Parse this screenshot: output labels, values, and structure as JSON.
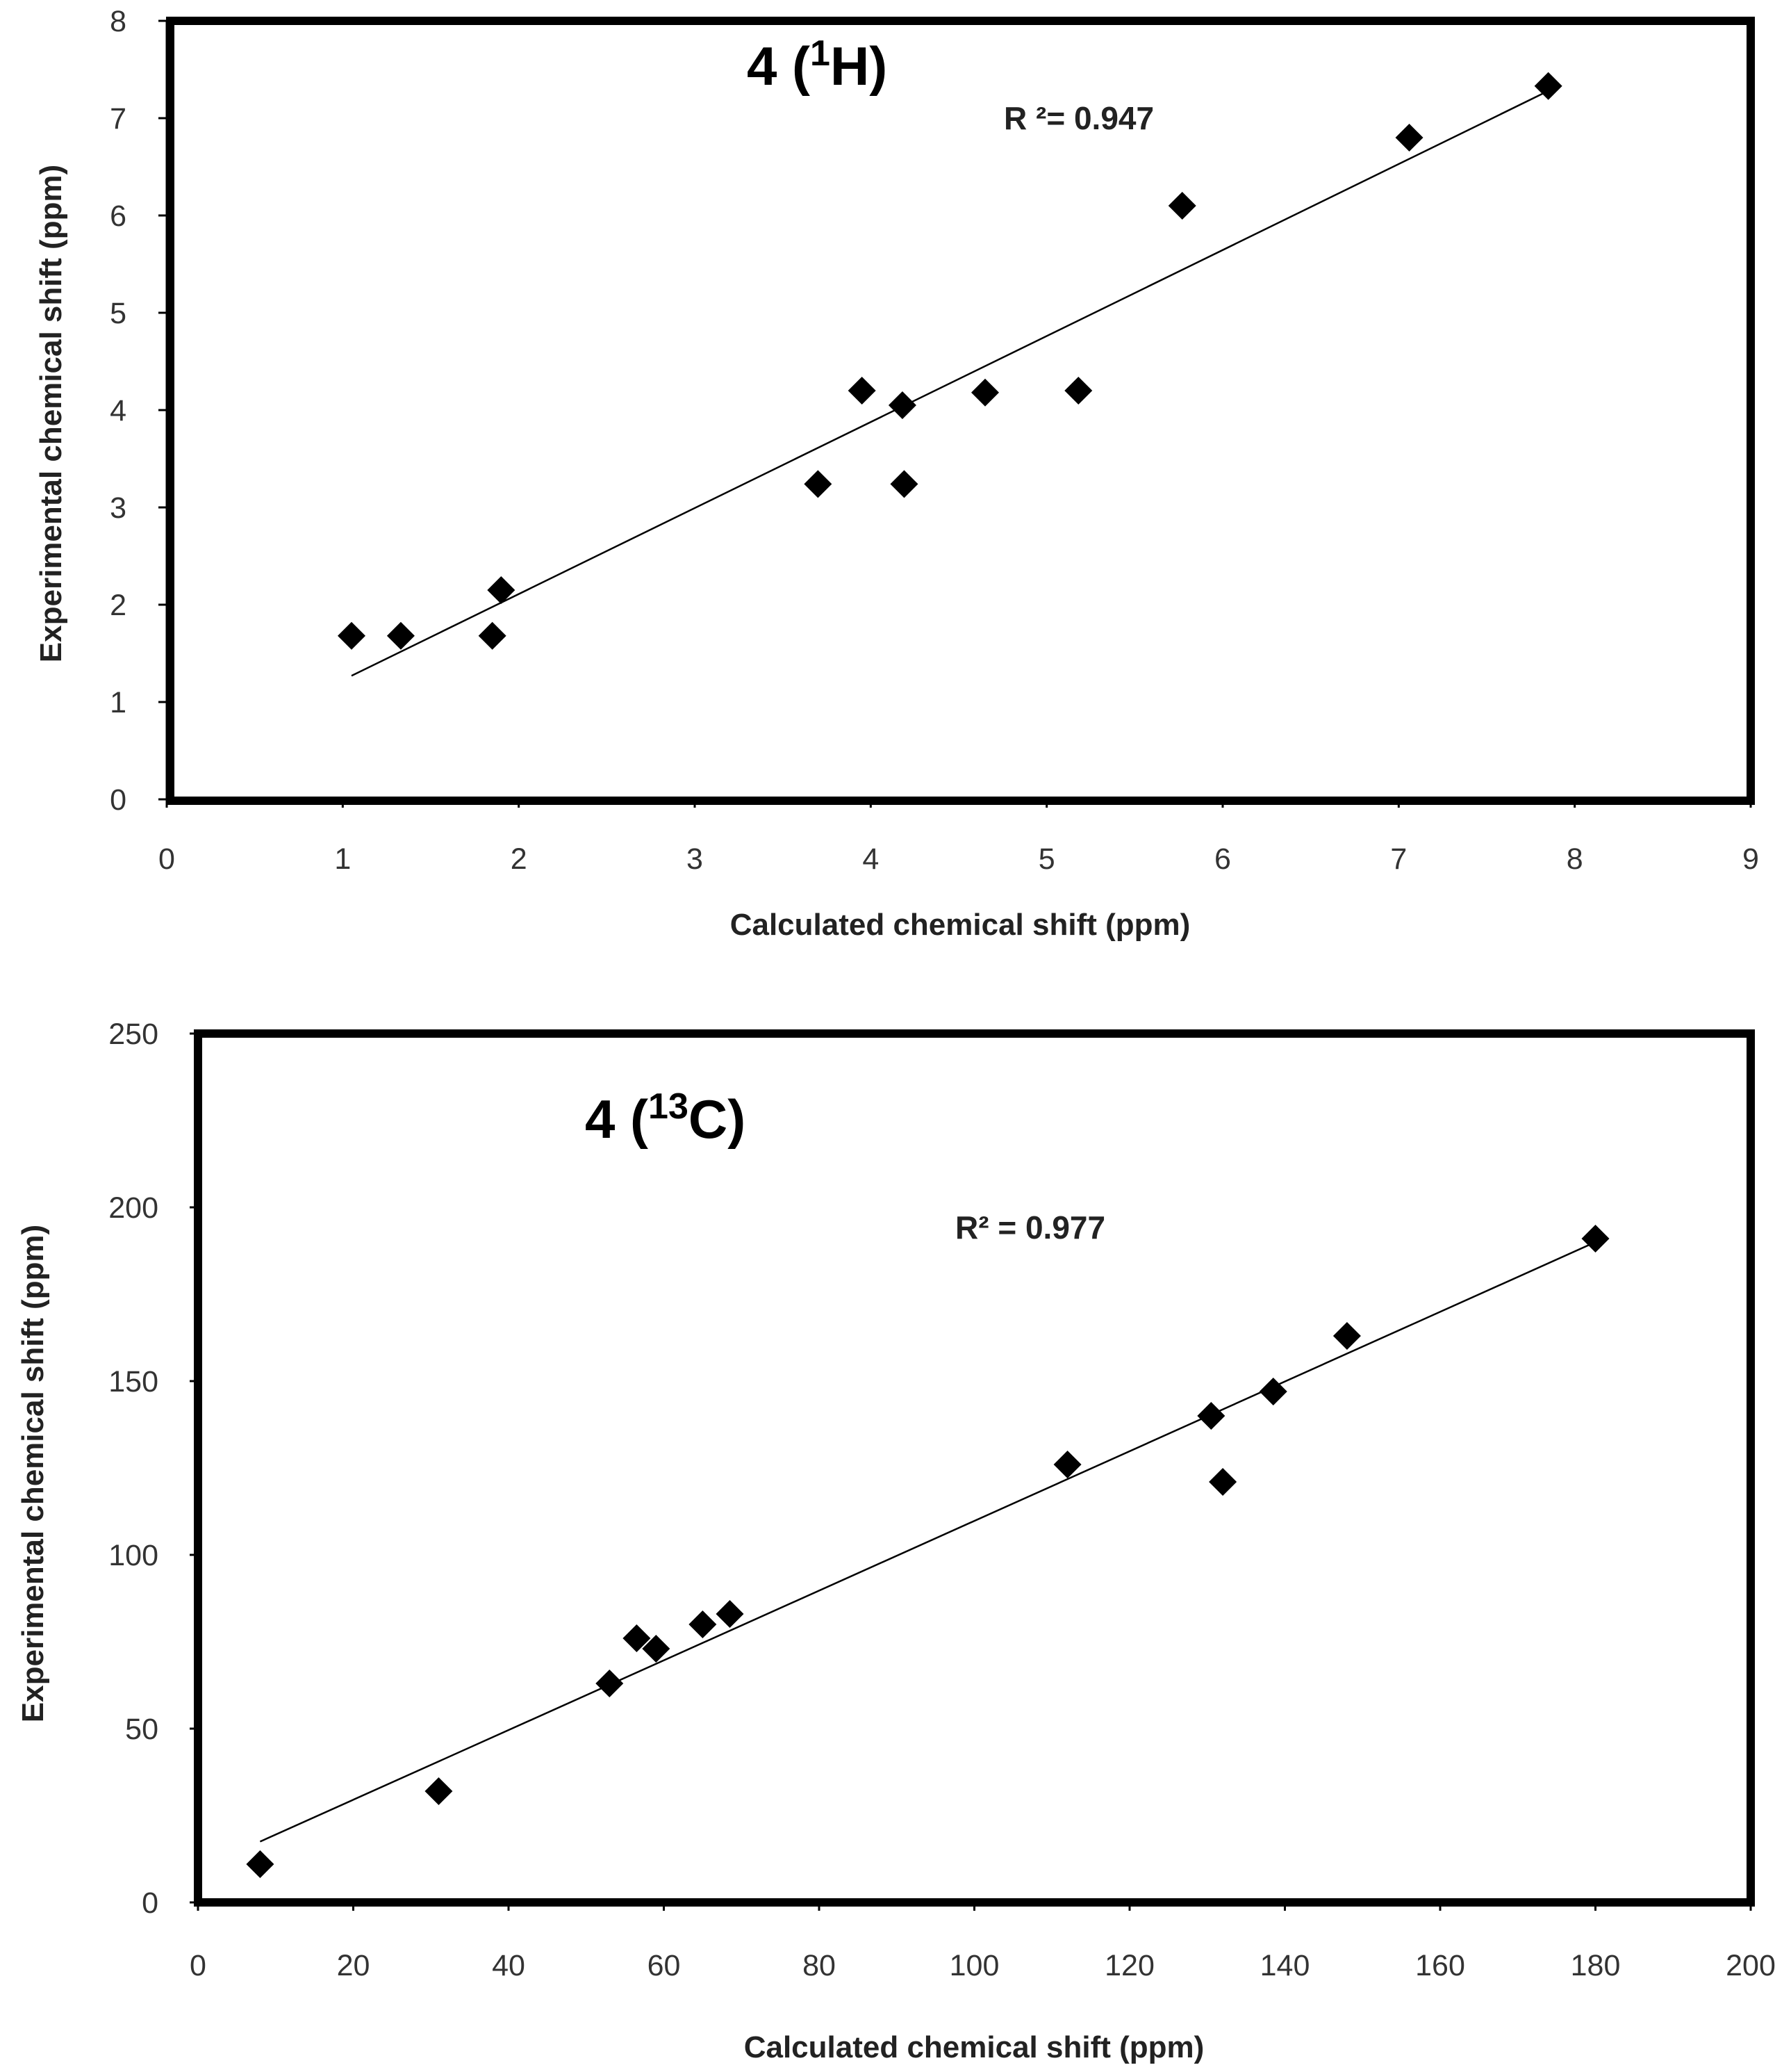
{
  "colors": {
    "ink": "#000000",
    "frame": "#000000",
    "marker": "#000000",
    "trend": "#000000",
    "tick_text": "#333333"
  },
  "chart_data": [
    {
      "type": "scatter",
      "title_main": "4 (",
      "title_sup": "1",
      "title_rest": "H)",
      "r2_label": "R ²= 0.947",
      "xlabel": "Calculated chemical shift (ppm)",
      "ylabel": "Experimental chemical shift (ppm)",
      "xlim": [
        0,
        9
      ],
      "ylim": [
        0,
        8
      ],
      "xticks": [
        "0",
        "1",
        "2",
        "3",
        "4",
        "5",
        "6",
        "7",
        "8",
        "9"
      ],
      "yticks": [
        "0",
        "1",
        "2",
        "3",
        "4",
        "5",
        "6",
        "7",
        "8"
      ],
      "points": [
        {
          "x": 1.05,
          "y": 1.68
        },
        {
          "x": 1.33,
          "y": 1.68
        },
        {
          "x": 1.85,
          "y": 1.68
        },
        {
          "x": 1.9,
          "y": 2.15
        },
        {
          "x": 3.7,
          "y": 3.24
        },
        {
          "x": 3.95,
          "y": 4.2
        },
        {
          "x": 4.18,
          "y": 4.05
        },
        {
          "x": 4.19,
          "y": 3.24
        },
        {
          "x": 4.65,
          "y": 4.18
        },
        {
          "x": 5.18,
          "y": 4.2
        },
        {
          "x": 5.77,
          "y": 6.1
        },
        {
          "x": 7.06,
          "y": 6.8
        },
        {
          "x": 7.85,
          "y": 7.33
        }
      ],
      "trendline": {
        "x": [
          1.05,
          7.85
        ],
        "y": [
          1.27,
          7.28
        ]
      }
    },
    {
      "type": "scatter",
      "title_main": "4 (",
      "title_sup": "13",
      "title_rest": "C)",
      "r2_label": "R² =   0.977",
      "xlabel": "Calculated chemical shift (ppm)",
      "ylabel": "Experimental chemical shift (ppm)",
      "xlim": [
        0,
        200
      ],
      "ylim": [
        0,
        250
      ],
      "xticks": [
        "0",
        "20",
        "40",
        "60",
        "80",
        "100",
        "120",
        "140",
        "160",
        "180",
        "200"
      ],
      "yticks": [
        "0",
        "50",
        "100",
        "150",
        "200",
        "250"
      ],
      "points": [
        {
          "x": 8,
          "y": 11
        },
        {
          "x": 31,
          "y": 32
        },
        {
          "x": 53,
          "y": 63
        },
        {
          "x": 56.5,
          "y": 76
        },
        {
          "x": 59,
          "y": 73
        },
        {
          "x": 65,
          "y": 80
        },
        {
          "x": 68.5,
          "y": 83
        },
        {
          "x": 112,
          "y": 126
        },
        {
          "x": 130.5,
          "y": 140
        },
        {
          "x": 132,
          "y": 121
        },
        {
          "x": 138.5,
          "y": 147
        },
        {
          "x": 148,
          "y": 163
        },
        {
          "x": 180,
          "y": 191
        }
      ],
      "trendline": {
        "x": [
          8,
          180
        ],
        "y": [
          17.5,
          190
        ]
      }
    }
  ]
}
